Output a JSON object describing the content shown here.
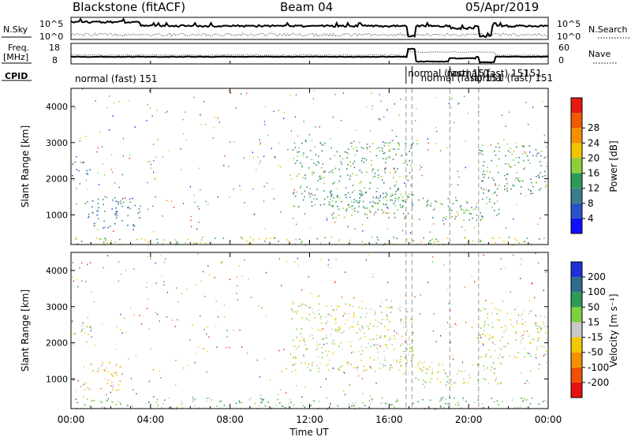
{
  "header": {
    "title": "Blackstone (fitACF)",
    "beam": "Beam 04",
    "date": "05/Apr/2019"
  },
  "noise_panel": {
    "left_label": "N.Sky",
    "left_ticks": [
      "10^5",
      "10^0"
    ],
    "right_ticks": [
      "10^5",
      "10^0"
    ],
    "right_label": "N.Search"
  },
  "freq_panel": {
    "left_label_top": "Freq.",
    "left_label_bottom": "[MHz]",
    "left_ticks": [
      "18",
      "8"
    ],
    "right_ticks": [
      "60",
      "0"
    ],
    "right_label": "Nave"
  },
  "cpid": {
    "label": "CPID",
    "entries": [
      {
        "text": "normal (fast) 151",
        "hour": 0.2
      },
      {
        "text": "normal (fast) 151",
        "hour": 16.95
      },
      {
        "text": "normal (fast) 151",
        "hour": 17.6
      },
      {
        "text": "normal (fast) 151",
        "hour": 18.9
      },
      {
        "text": "normal (fast) 151",
        "hour": 20.1
      },
      {
        "text": "-151",
        "hour": 22.6
      }
    ],
    "change_hours": [
      16.85,
      17.15,
      19.05,
      20.5
    ]
  },
  "time_axis": {
    "label": "Time UT",
    "ticks": [
      "00:00",
      "04:00",
      "08:00",
      "12:00",
      "16:00",
      "20:00",
      "00:00"
    ]
  },
  "range_axis": {
    "label": "Slant Range [km]",
    "ticks": [
      "1000",
      "2000",
      "3000",
      "4000"
    ]
  },
  "power_scale": {
    "label": "Power [dB]",
    "ticks": [
      "4",
      "8",
      "12",
      "16",
      "20",
      "24",
      "28"
    ],
    "colors": [
      "#1010ff",
      "#2a52c8",
      "#3a7d8c",
      "#2e9a5a",
      "#8ccf3a",
      "#f2c400",
      "#f59000",
      "#f05a00",
      "#e61a10"
    ]
  },
  "velocity_scale": {
    "label": "Velocity [m s⁻¹]",
    "ticks": [
      "200",
      "100",
      "50",
      "15",
      "-15",
      "-50",
      "-100",
      "-200"
    ],
    "colors": [
      "#2030d8",
      "#2f6b8a",
      "#2d9a55",
      "#7cd040",
      "#c8c8c8",
      "#f2c800",
      "#f59000",
      "#f05000",
      "#e61010"
    ]
  },
  "chart_data": [
    {
      "type": "heatmap",
      "name": "power",
      "x_range_hours": [
        0,
        24
      ],
      "ylim": [
        180,
        4500
      ],
      "colorbar_label": "Power [dB]",
      "features": [
        {
          "hours": [
            0,
            1.0
          ],
          "range_km": [
            2100,
            2500
          ],
          "power_db": 6
        },
        {
          "hours": [
            0.6,
            3.5
          ],
          "range_km": [
            650,
            1500
          ],
          "power_db": 9
        },
        {
          "hours": [
            0,
            24
          ],
          "range_km": [
            180,
            400
          ],
          "power_db": 14
        },
        {
          "hours": [
            11,
            17.2
          ],
          "range_km": [
            1200,
            3100
          ],
          "power_db": 12
        },
        {
          "hours": [
            13,
            17.2
          ],
          "range_km": [
            900,
            1600
          ],
          "power_db": 10
        },
        {
          "hours": [
            17.4,
            21.6
          ],
          "range_km": [
            850,
            1500
          ],
          "power_db": 11
        },
        {
          "hours": [
            20.5,
            23.9
          ],
          "range_km": [
            1600,
            3000
          ],
          "power_db": 10
        }
      ]
    },
    {
      "type": "heatmap",
      "name": "velocity",
      "x_range_hours": [
        0,
        24
      ],
      "ylim": [
        180,
        4500
      ],
      "colorbar_label": "Velocity [m s-1]",
      "features": [
        {
          "hours": [
            0,
            1.0
          ],
          "range_km": [
            2100,
            2500
          ],
          "velocity": 0
        },
        {
          "hours": [
            0.6,
            2.6
          ],
          "range_km": [
            700,
            1500
          ],
          "velocity": -40
        },
        {
          "hours": [
            0,
            24
          ],
          "range_km": [
            180,
            500
          ],
          "velocity": 30
        },
        {
          "hours": [
            11,
            17.2
          ],
          "range_km": [
            1200,
            3100
          ],
          "velocity": 0
        },
        {
          "hours": [
            17.4,
            21.6
          ],
          "range_km": [
            850,
            1500
          ],
          "velocity": 0
        },
        {
          "hours": [
            20.5,
            23.9
          ],
          "range_km": [
            1600,
            3000
          ],
          "velocity": 0
        }
      ]
    }
  ]
}
